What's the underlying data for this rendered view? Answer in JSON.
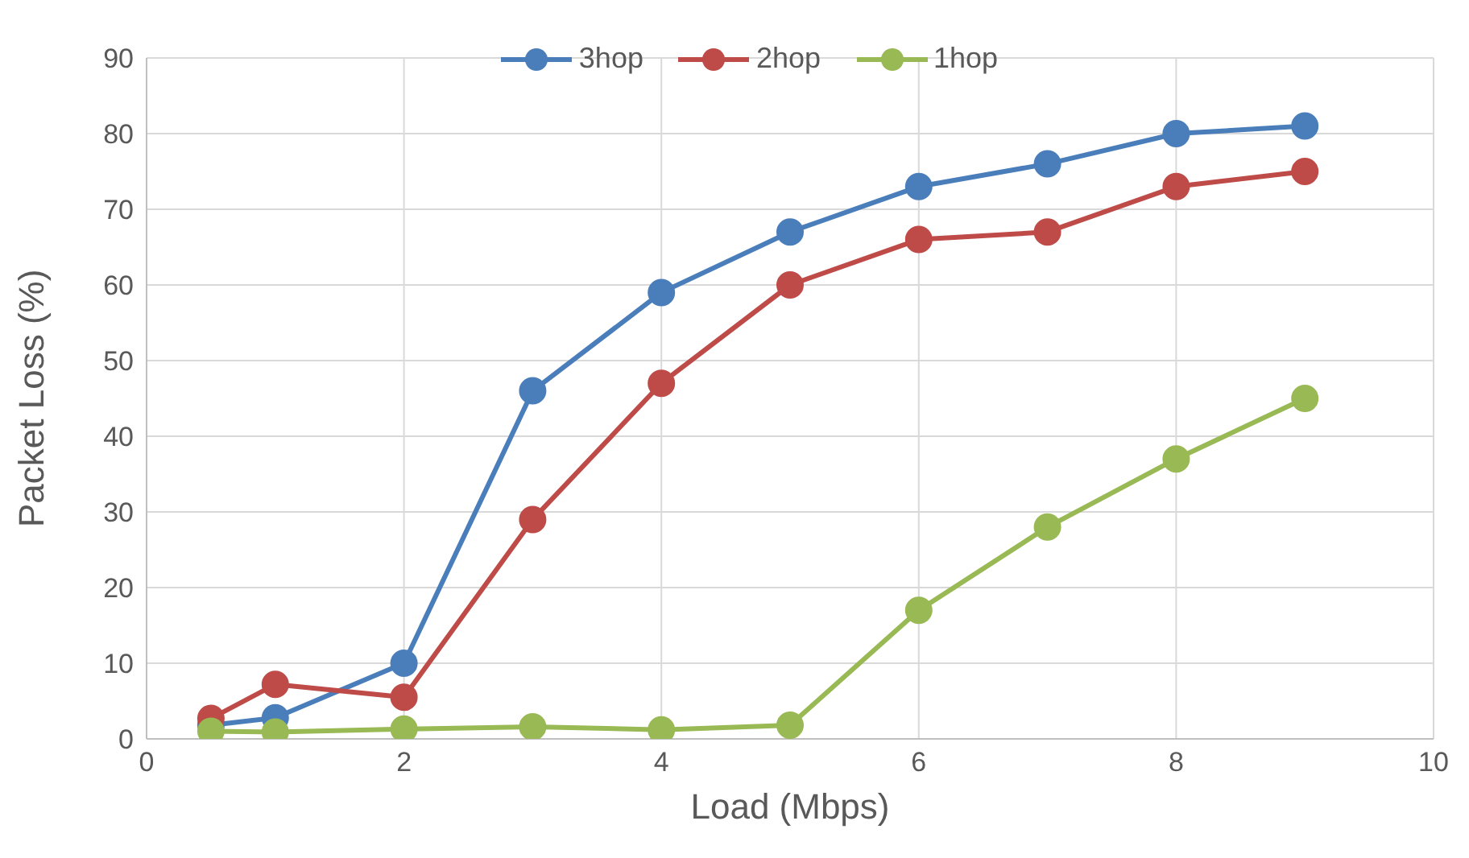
{
  "chart_data": {
    "type": "line",
    "xlabel": "Load (Mbps)",
    "ylabel": "Packet Loss (%)",
    "x": [
      0.5,
      1,
      2,
      3,
      4,
      5,
      6,
      7,
      8,
      9
    ],
    "series": [
      {
        "name": "3hop",
        "color": "#4a7ebb",
        "values": [
          1.8,
          2.8,
          10,
          46,
          59,
          67,
          73,
          76,
          80,
          81
        ]
      },
      {
        "name": "2hop",
        "color": "#be4b48",
        "values": [
          2.7,
          7.2,
          5.5,
          29,
          47,
          60,
          66,
          67,
          73,
          75
        ]
      },
      {
        "name": "1hop",
        "color": "#98b954",
        "values": [
          1,
          0.9,
          1.3,
          1.6,
          1.2,
          1.8,
          17,
          28,
          37,
          45
        ]
      }
    ],
    "xlim": [
      0,
      10
    ],
    "xticks": [
      0,
      2,
      4,
      6,
      8,
      10
    ],
    "ylim": [
      0,
      90
    ],
    "yticks": [
      0,
      10,
      20,
      30,
      40,
      50,
      60,
      70,
      80,
      90
    ],
    "grid": true,
    "legend": "top",
    "marker": "circle",
    "line_style": "solid"
  }
}
